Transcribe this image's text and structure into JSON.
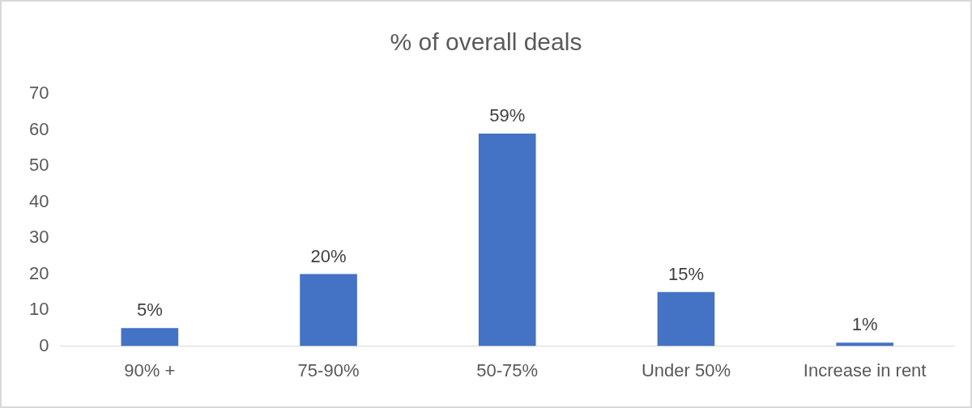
{
  "chart_data": {
    "type": "bar",
    "title": "% of overall deals",
    "categories": [
      "90% +",
      "75-90%",
      "50-75%",
      "Under 50%",
      "Increase in rent"
    ],
    "values": [
      5,
      20,
      59,
      15,
      1
    ],
    "value_labels": [
      "5%",
      "20%",
      "59%",
      "15%",
      "1%"
    ],
    "color": "#4472c4",
    "ylim": [
      0,
      70
    ],
    "yticks": [
      0,
      10,
      20,
      30,
      40,
      50,
      60,
      70
    ],
    "grid": false,
    "legend": false
  }
}
